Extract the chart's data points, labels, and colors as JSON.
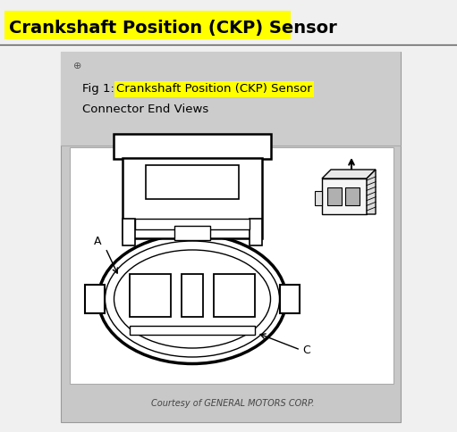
{
  "title": "Crankshaft Position (CKP) Sensor",
  "title_bg": "#ffff00",
  "title_fontsize": 14,
  "fig_bg": "#f0f0f0",
  "panel_bg": "#c8c8c8",
  "diagram_bg": "#ffffff",
  "fig1_plain": "Fig 1: ",
  "fig1_highlight": "Crankshaft Position (CKP) Sensor",
  "fig1_line2": "Connector End Views",
  "caption": "Courtesy of GENERAL MOTORS CORP.",
  "label_A": "A",
  "label_C": "C"
}
